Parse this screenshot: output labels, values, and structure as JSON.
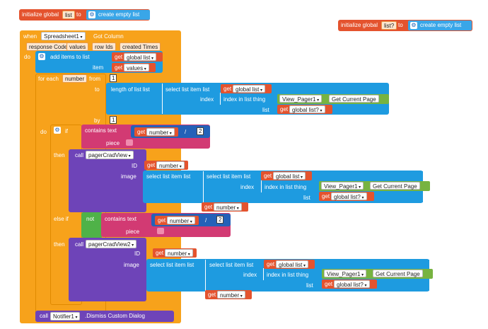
{
  "init1": {
    "label": "initialize global",
    "name": "list",
    "to": "to",
    "create": "create empty list"
  },
  "init2": {
    "label": "initialize global",
    "name": "list?",
    "to": "to",
    "create": "create empty list"
  },
  "event": {
    "when": "when",
    "component": "Spreadsheet1",
    "event": "Got Column",
    "params": [
      "response Code",
      "values",
      "row Ids",
      "created Times"
    ],
    "do": "do"
  },
  "additems": {
    "label": "add items to list",
    "list_kw": "list",
    "item_kw": "item",
    "get": "get",
    "var_list": "global list",
    "var_values": "values"
  },
  "foreach": {
    "label": "for each",
    "var": "number",
    "from": "from",
    "from_val": "1",
    "to": "to",
    "by": "by",
    "by_val": "1"
  },
  "length": {
    "label": "length of list list",
    "select": "select list item list",
    "index": "index",
    "index_in": "index in list thing",
    "list_kw": "list",
    "get": "get",
    "var_list": "global list",
    "var_list2": "global list?",
    "component": "View_Pager1",
    "prop": "Get Current Page"
  },
  "ifblk": {
    "do": "do",
    "if": "if",
    "contains": "contains text",
    "piece": "piece",
    "get": "get",
    "var": "number",
    "div": "/",
    "div_val": "2",
    "then": "then",
    "call": "call",
    "comp": "pagerCradView",
    "id": "ID",
    "image": "image",
    "select": "select list item list",
    "index": "index",
    "index_in": "index in list thing",
    "list_kw": "list",
    "var_list": "global list",
    "var_list2": "global list?",
    "component": "View_Pager1",
    "prop": "Get Current Page"
  },
  "elseif": {
    "label": "else if",
    "not": "not",
    "contains": "contains text",
    "piece": "piece",
    "get": "get",
    "var": "number",
    "div": "/",
    "div_val": "2",
    "then": "then",
    "call": "call",
    "comp": "pagerCradView2",
    "id": "ID",
    "image": "image",
    "select": "select list item list",
    "index": "index",
    "index_in": "index in list thing",
    "list_kw": "list",
    "var_list": "global list",
    "var_list2": "global list?",
    "component": "View_Pager1",
    "prop": "Get Current Page"
  },
  "notifier": {
    "call": "call",
    "comp": "Notifier1",
    "method": ".Dismiss Custom Dialog"
  }
}
